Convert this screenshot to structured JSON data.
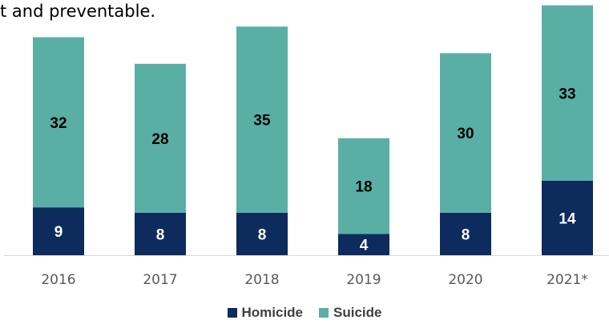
{
  "header": {
    "text": "t and preventable."
  },
  "chart_data": {
    "type": "bar",
    "stacked": true,
    "categories": [
      "2016",
      "2017",
      "2018",
      "2019",
      "2020",
      "2021*"
    ],
    "series": [
      {
        "name": "Homicide",
        "values": [
          9,
          8,
          8,
          4,
          8,
          14
        ],
        "color": "#0d2b5c",
        "label_color": "#ffffff"
      },
      {
        "name": "Suicide",
        "values": [
          32,
          28,
          35,
          18,
          30,
          33
        ],
        "color": "#5aafa5",
        "label_color": "#000000"
      }
    ],
    "ylim": [
      0,
      48
    ],
    "grid": false,
    "legend": "bottom"
  }
}
